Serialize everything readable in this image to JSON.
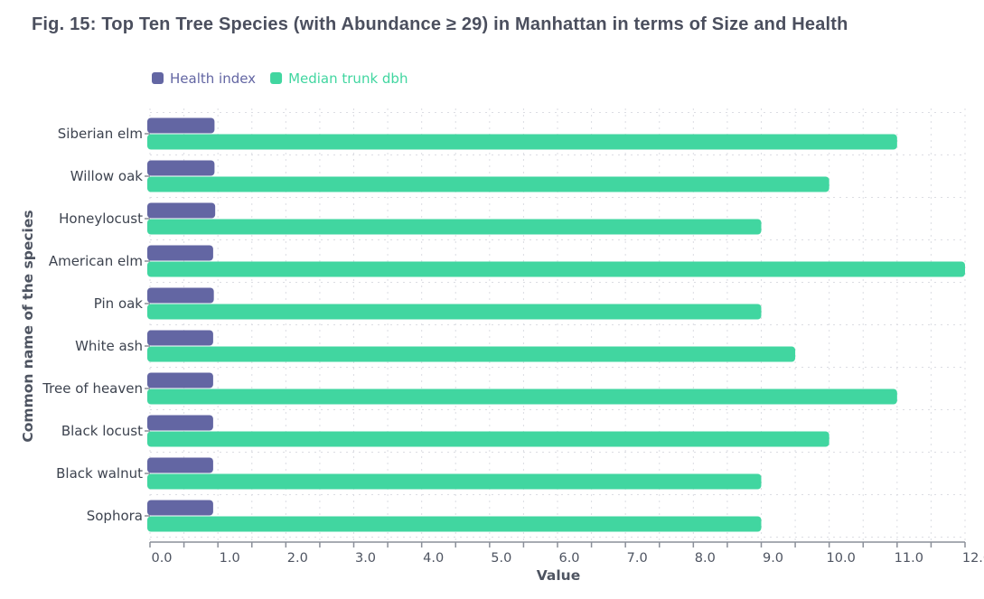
{
  "figure": {
    "title": "Fig. 15: Top Ten Tree Species (with Abundance ≥ 29) in Manhattan in terms of Size and Health"
  },
  "chart_data": {
    "type": "bar",
    "orientation": "horizontal",
    "categories": [
      "Siberian elm",
      "Willow oak",
      "Honeylocust",
      "American elm",
      "Pin oak",
      "White ash",
      "Tree of heaven",
      "Black locust",
      "Black walnut",
      "Sophora"
    ],
    "series": [
      {
        "name": "Health index",
        "color": "#6366a3",
        "values": [
          0.95,
          0.95,
          0.96,
          0.93,
          0.94,
          0.93,
          0.93,
          0.93,
          0.93,
          0.93
        ]
      },
      {
        "name": "Median trunk dbh",
        "color": "#41d6a0",
        "values": [
          11,
          10,
          9,
          12,
          9,
          9.5,
          11,
          10,
          9,
          9
        ]
      }
    ],
    "xlabel": "Value",
    "ylabel": "Common name of the species",
    "xlim": [
      0,
      12
    ],
    "xticks": [
      "0.0",
      "1.0",
      "2.0",
      "3.0",
      "4.0",
      "5.0",
      "6.0",
      "7.0",
      "8.0",
      "9.0",
      "10.0",
      "11.0",
      "12.0"
    ],
    "grid": true,
    "legend_position": "top-left",
    "colors": {
      "axis": "#8a8f99",
      "grid": "#dcdde3",
      "title": "#4b4f5e"
    }
  }
}
